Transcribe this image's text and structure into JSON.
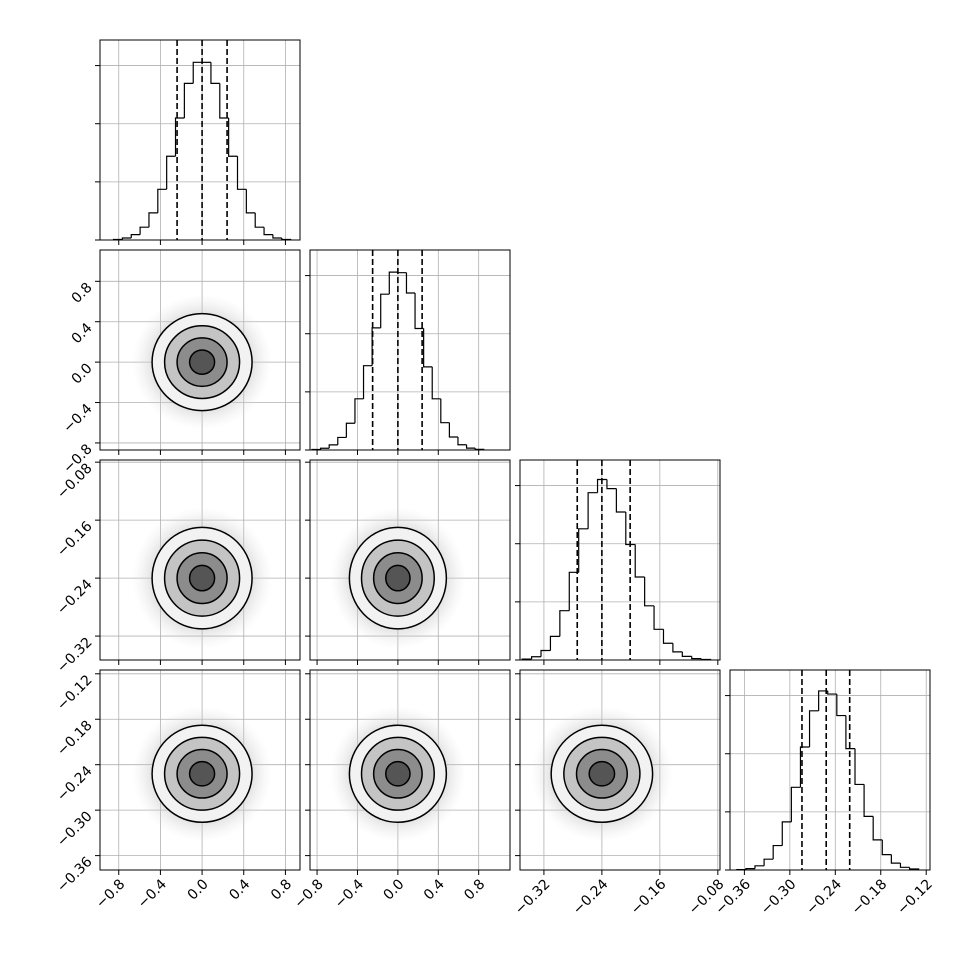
{
  "chart_data": {
    "type": "corner",
    "grid": true,
    "color": "#000000",
    "levels": [
      0.5,
      1,
      1.5,
      2
    ],
    "hist_ylim": [
      0,
      1720
    ],
    "hist_yticks": [
      0,
      500,
      1000,
      1500
    ],
    "params": [
      {
        "lim": [
          -0.98,
          0.94
        ],
        "ticks": [
          {
            "value": -0.8,
            "label": "−0.8"
          },
          {
            "value": -0.4,
            "label": "−0.4"
          },
          {
            "value": 0,
            "label": "0.0"
          },
          0.4,
          0.8
        ],
        "bins": [
          -0.85,
          -0.765,
          -0.68,
          -0.595,
          -0.51,
          -0.425,
          -0.34,
          -0.255,
          -0.17,
          -0.085,
          0,
          0.085,
          0.17,
          0.255,
          0.34,
          0.425,
          0.51,
          0.595,
          0.68,
          0.765,
          0.85
        ],
        "counts": [
          5,
          17,
          46,
          110,
          233,
          436,
          720,
          1049,
          1347,
          1528,
          1528,
          1347,
          1049,
          720,
          436,
          233,
          110,
          46,
          17,
          5
        ],
        "quantiles": [
          -0.24,
          0,
          0.24
        ],
        "center": 0,
        "sigma": 0.24
      },
      {
        "lim": [
          -0.87,
          1.11
        ],
        "ticks": [
          {
            "value": -0.8,
            "label": "−0.8"
          },
          {
            "value": -0.4,
            "label": "−0.4"
          },
          {
            "value": 0,
            "label": "0.0"
          },
          0.4,
          0.8
        ],
        "bins": [
          -0.85,
          -0.765,
          -0.68,
          -0.595,
          -0.51,
          -0.425,
          -0.34,
          -0.255,
          -0.17,
          -0.085,
          0,
          0.085,
          0.17,
          0.255,
          0.34,
          0.425,
          0.51,
          0.595,
          0.68,
          0.765,
          0.85
        ],
        "counts": [
          4,
          15,
          44,
          108,
          230,
          440,
          725,
          1050,
          1340,
          1530,
          1525,
          1350,
          1045,
          715,
          440,
          235,
          112,
          45,
          16,
          6
        ],
        "quantiles": [
          -0.25,
          0,
          0.24
        ],
        "center": 0,
        "sigma": 0.24
      },
      {
        "lim": [
          -0.353,
          -0.077
        ],
        "ticks": [
          {
            "value": -0.32,
            "label": "−0.32"
          },
          {
            "value": -0.24,
            "label": "−0.24"
          },
          {
            "value": -0.16,
            "label": "−0.16"
          },
          {
            "value": -0.08,
            "label": "−0.08"
          }
        ],
        "bins": [
          -0.35,
          -0.337,
          -0.324,
          -0.311,
          -0.298,
          -0.285,
          -0.272,
          -0.259,
          -0.246,
          -0.233,
          -0.22,
          -0.207,
          -0.194,
          -0.181,
          -0.168,
          -0.155,
          -0.142,
          -0.129,
          -0.116,
          -0.103,
          -0.09
        ],
        "counts": [
          8,
          28,
          82,
          203,
          424,
          754,
          1128,
          1439,
          1552,
          1474,
          1273,
          993,
          714,
          466,
          264,
          144,
          70,
          31,
          12,
          5
        ],
        "quantiles": [
          -0.274,
          -0.24,
          -0.201
        ],
        "center": -0.24,
        "sigma": 0.035
      },
      {
        "lim": [
          -0.379,
          -0.115
        ],
        "ticks": [
          {
            "value": -0.36,
            "label": "−0.36"
          },
          {
            "value": -0.3,
            "label": "−0.30"
          },
          {
            "value": -0.24,
            "label": "−0.24"
          },
          {
            "value": -0.18,
            "label": "−0.18"
          },
          {
            "value": -0.12,
            "label": "−0.12"
          }
        ],
        "bins": [
          -0.37,
          -0.358,
          -0.346,
          -0.334,
          -0.322,
          -0.31,
          -0.298,
          -0.286,
          -0.274,
          -0.262,
          -0.25,
          -0.238,
          -0.226,
          -0.214,
          -0.202,
          -0.19,
          -0.178,
          -0.166,
          -0.154,
          -0.142,
          -0.13
        ],
        "counts": [
          3,
          12,
          36,
          93,
          210,
          414,
          711,
          1058,
          1369,
          1540,
          1513,
          1328,
          1044,
          736,
          461,
          259,
          132,
          59,
          23,
          9
        ],
        "quantiles": [
          -0.284,
          -0.252,
          -0.221
        ],
        "center": -0.252,
        "sigma": 0.032
      }
    ]
  }
}
